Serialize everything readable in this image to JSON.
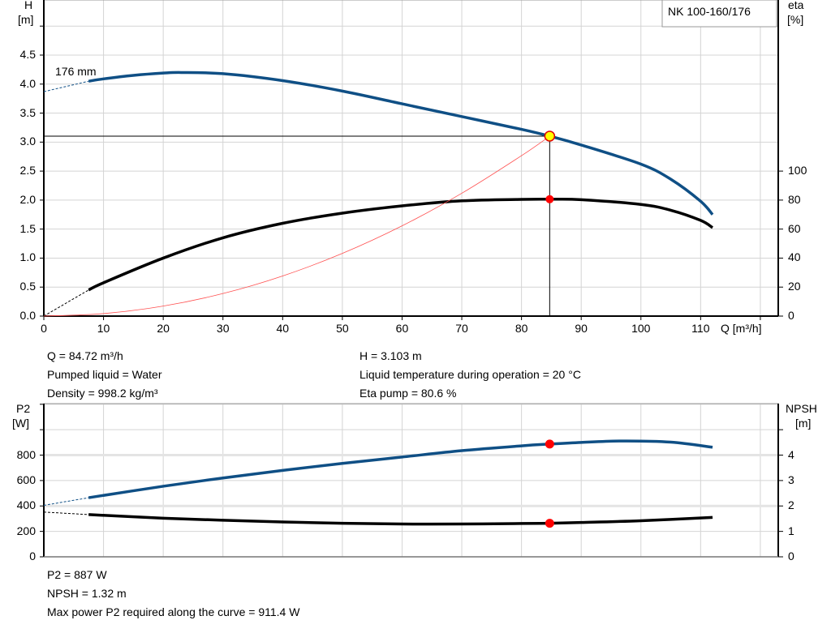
{
  "chart_data": [
    {
      "type": "line",
      "title": "NK 100-160/176",
      "xlabel": "Q [m³/h]",
      "ylabel": "H\n[m]",
      "y2label": "eta\n[%]",
      "xlim": [
        0,
        123
      ],
      "ylim": [
        0,
        5.45
      ],
      "y2lim": [
        0,
        218
      ],
      "x_ticks": [
        0,
        10,
        20,
        30,
        40,
        50,
        60,
        70,
        80,
        90,
        100,
        110
      ],
      "y_ticks": [
        "0.0",
        "0.5",
        "1.0",
        "1.5",
        "2.0",
        "2.5",
        "3.0",
        "3.5",
        "4.0",
        "4.5"
      ],
      "y2_ticks": [
        0,
        20,
        40,
        60,
        80,
        100
      ],
      "grid": true,
      "annotation": "176 mm",
      "series": [
        {
          "id": "H",
          "axis": "left",
          "color": "#0f4f85",
          "x": [
            7.5,
            10,
            15,
            20,
            23,
            30,
            40,
            50,
            60,
            70,
            80,
            84.72,
            90,
            100,
            105,
            110,
            112
          ],
          "y": [
            4.05,
            4.09,
            4.15,
            4.19,
            4.2,
            4.18,
            4.06,
            3.88,
            3.66,
            3.44,
            3.22,
            3.103,
            2.95,
            2.62,
            2.36,
            1.98,
            1.75
          ],
          "extrapolated": {
            "x": [
              0,
              7.5
            ],
            "y": [
              3.87,
              4.05
            ]
          }
        },
        {
          "id": "eta",
          "axis": "right",
          "color": "#000000",
          "x": [
            7.5,
            10,
            20,
            30,
            40,
            50,
            60,
            70,
            80,
            84.72,
            90,
            100,
            105,
            110,
            112
          ],
          "y": [
            18,
            23,
            40,
            54,
            64,
            71,
            76,
            79.5,
            80.5,
            80.6,
            80.3,
            77,
            73,
            66,
            61
          ],
          "extrapolated": {
            "x": [
              0,
              7.5
            ],
            "y": [
              0,
              18
            ]
          }
        },
        {
          "id": "system",
          "axis": "left",
          "color": "#ff5050",
          "x": [
            0,
            10,
            20,
            30,
            40,
            50,
            60,
            70,
            80,
            84.72
          ],
          "y": [
            0,
            0.043,
            0.173,
            0.389,
            0.692,
            1.081,
            1.556,
            2.118,
            2.766,
            3.103
          ]
        }
      ],
      "operating_point": {
        "Q": 84.72,
        "H": 3.103,
        "eta": 80.6
      }
    },
    {
      "type": "line",
      "ylabel": "P2\n[W]",
      "y2label": "NPSH\n[m]",
      "xlim": [
        0,
        123
      ],
      "ylim": [
        0,
        1205
      ],
      "y2lim": [
        0,
        6.025
      ],
      "y_ticks": [
        "0",
        "200",
        "400",
        "600",
        "800",
        ""
      ],
      "y2_ticks": [
        "0",
        "1",
        "2",
        "3",
        "4",
        ""
      ],
      "grid": true,
      "series": [
        {
          "id": "P2",
          "axis": "left",
          "color": "#0f4f85",
          "x": [
            7.5,
            20,
            30,
            40,
            50,
            60,
            70,
            80,
            84.72,
            90,
            97,
            105,
            112
          ],
          "y": [
            465,
            555,
            620,
            680,
            735,
            785,
            835,
            873,
            887,
            900,
            911,
            902,
            862
          ],
          "extrapolated": {
            "x": [
              0,
              7.5
            ],
            "y": [
              405,
              465
            ]
          }
        },
        {
          "id": "NPSH",
          "axis": "right",
          "color": "#000000",
          "x": [
            7.5,
            20,
            30,
            40,
            50,
            60,
            70,
            80,
            84.72,
            90,
            100,
            112
          ],
          "y": [
            1.66,
            1.52,
            1.44,
            1.37,
            1.32,
            1.29,
            1.29,
            1.31,
            1.32,
            1.35,
            1.42,
            1.55
          ],
          "extrapolated": {
            "x": [
              0,
              7.5
            ],
            "y": [
              1.76,
              1.66
            ]
          }
        }
      ],
      "operating_point": {
        "Q": 84.72,
        "P2": 887,
        "NPSH": 1.32
      }
    }
  ],
  "info_top_left": [
    "Q = 84.72 m³/h",
    "Pumped liquid = Water",
    "Density = 998.2 kg/m³"
  ],
  "info_top_right": [
    "H = 3.103 m",
    "Liquid temperature during operation = 20 °C",
    "Eta pump = 80.6 %"
  ],
  "info_bottom": [
    "P2 = 887 W",
    "NPSH = 1.32 m",
    "Max power P2 required along the curve = 911.4 W"
  ]
}
